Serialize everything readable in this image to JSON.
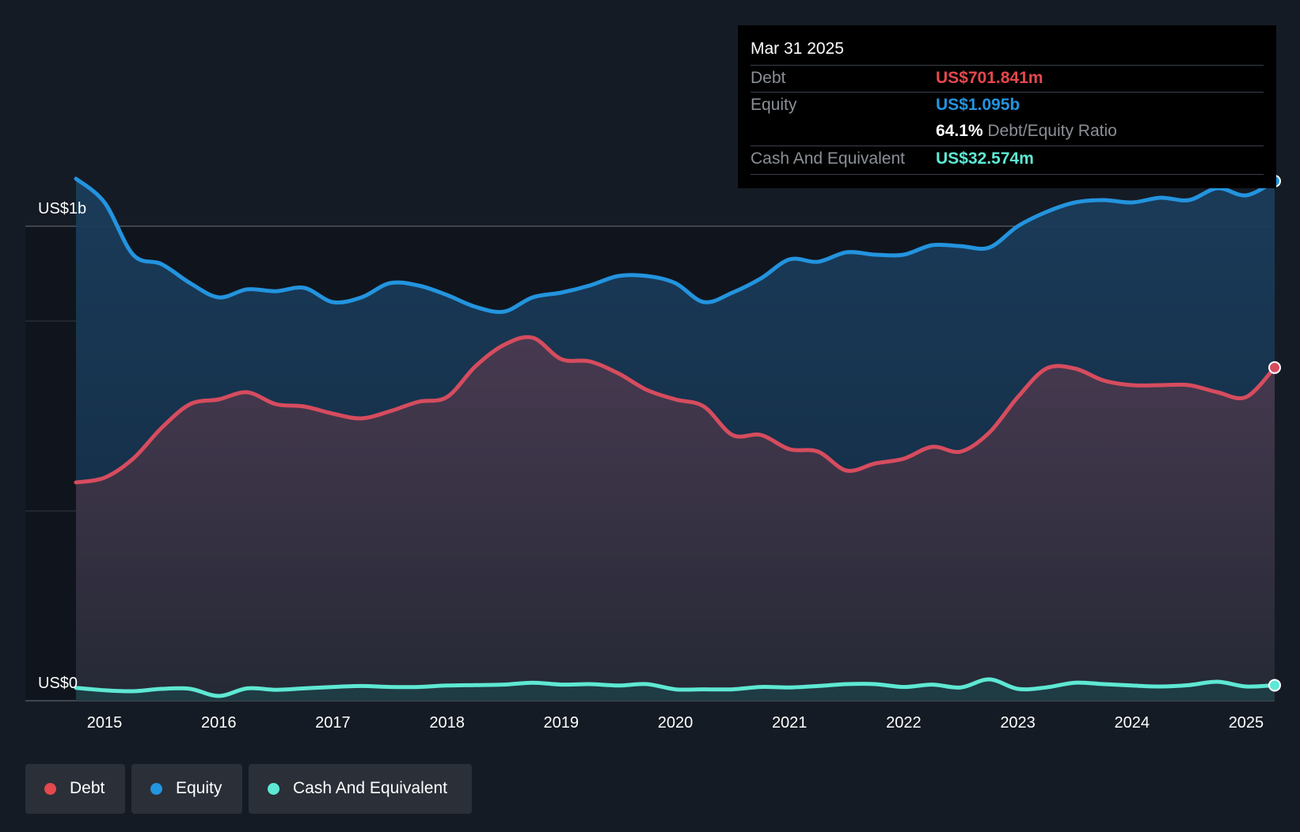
{
  "tooltip": {
    "date": "Mar 31 2025",
    "debt_label": "Debt",
    "debt_value": "US$701.841m",
    "equity_label": "Equity",
    "equity_value": "US$1.095b",
    "ratio_value": "64.1%",
    "ratio_label": "Debt/Equity Ratio",
    "cash_label": "Cash And Equivalent",
    "cash_value": "US$32.574m"
  },
  "legend": [
    {
      "label": "Debt",
      "color": "#e5484d"
    },
    {
      "label": "Equity",
      "color": "#2394df"
    },
    {
      "label": "Cash And Equivalent",
      "color": "#5ee8d3"
    }
  ],
  "colors": {
    "background": "#151b24",
    "debt": "#d64c5e",
    "equity": "#2394df",
    "cash": "#5ee8d3"
  },
  "chart_data": {
    "type": "area",
    "title": "",
    "xlabel": "",
    "ylabel": "",
    "y_top_label": "US$1b",
    "y_bottom_label": "US$0",
    "ylim": [
      0,
      1.2
    ],
    "xlim": [
      2014.75,
      2025.25
    ],
    "x_ticks": [
      2015,
      2016,
      2017,
      2018,
      2019,
      2020,
      2021,
      2022,
      2023,
      2024,
      2025
    ],
    "x_tick_labels": [
      "2015",
      "2016",
      "2017",
      "2018",
      "2019",
      "2020",
      "2021",
      "2022",
      "2023",
      "2024",
      "2025"
    ],
    "series": [
      {
        "name": "Equity",
        "x": [
          2014.75,
          2015.0,
          2015.25,
          2015.5,
          2015.75,
          2016.0,
          2016.25,
          2016.5,
          2016.75,
          2017.0,
          2017.25,
          2017.5,
          2017.75,
          2018.0,
          2018.25,
          2018.5,
          2018.75,
          2019.0,
          2019.25,
          2019.5,
          2019.75,
          2020.0,
          2020.25,
          2020.5,
          2020.75,
          2021.0,
          2021.25,
          2021.5,
          2021.75,
          2022.0,
          2022.25,
          2022.5,
          2022.75,
          2023.0,
          2023.25,
          2023.5,
          2023.75,
          2024.0,
          2024.25,
          2024.5,
          2024.75,
          2025.0,
          2025.25
        ],
        "values": [
          1.1,
          1.05,
          0.94,
          0.92,
          0.88,
          0.85,
          0.867,
          0.863,
          0.87,
          0.84,
          0.85,
          0.88,
          0.875,
          0.855,
          0.83,
          0.82,
          0.85,
          0.86,
          0.875,
          0.895,
          0.895,
          0.88,
          0.84,
          0.86,
          0.89,
          0.93,
          0.925,
          0.945,
          0.94,
          0.94,
          0.96,
          0.958,
          0.955,
          1.0,
          1.03,
          1.05,
          1.055,
          1.05,
          1.06,
          1.055,
          1.08,
          1.065,
          1.095
        ]
      },
      {
        "name": "Debt",
        "x": [
          2014.75,
          2015.0,
          2015.25,
          2015.5,
          2015.75,
          2016.0,
          2016.25,
          2016.5,
          2016.75,
          2017.0,
          2017.25,
          2017.5,
          2017.75,
          2018.0,
          2018.25,
          2018.5,
          2018.75,
          2019.0,
          2019.25,
          2019.5,
          2019.75,
          2020.0,
          2020.25,
          2020.5,
          2020.75,
          2021.0,
          2021.25,
          2021.5,
          2021.75,
          2022.0,
          2022.25,
          2022.5,
          2022.75,
          2023.0,
          2023.25,
          2023.5,
          2023.75,
          2024.0,
          2024.25,
          2024.5,
          2024.75,
          2025.0,
          2025.25
        ],
        "values": [
          0.46,
          0.47,
          0.51,
          0.575,
          0.625,
          0.635,
          0.65,
          0.625,
          0.62,
          0.605,
          0.595,
          0.61,
          0.63,
          0.64,
          0.705,
          0.75,
          0.765,
          0.72,
          0.715,
          0.69,
          0.655,
          0.635,
          0.62,
          0.56,
          0.56,
          0.53,
          0.525,
          0.485,
          0.5,
          0.51,
          0.535,
          0.525,
          0.565,
          0.64,
          0.7,
          0.7,
          0.675,
          0.665,
          0.665,
          0.665,
          0.65,
          0.64,
          0.702
        ]
      },
      {
        "name": "Cash And Equivalent",
        "x": [
          2014.75,
          2015.0,
          2015.25,
          2015.5,
          2015.75,
          2016.0,
          2016.25,
          2016.5,
          2016.75,
          2017.0,
          2017.25,
          2017.5,
          2017.75,
          2018.0,
          2018.25,
          2018.5,
          2018.75,
          2019.0,
          2019.25,
          2019.5,
          2019.75,
          2020.0,
          2020.25,
          2020.5,
          2020.75,
          2021.0,
          2021.25,
          2021.5,
          2021.75,
          2022.0,
          2022.25,
          2022.5,
          2022.75,
          2023.0,
          2023.25,
          2023.5,
          2023.75,
          2024.0,
          2024.25,
          2024.5,
          2024.75,
          2025.0,
          2025.25
        ],
        "values": [
          0.027,
          0.022,
          0.02,
          0.025,
          0.025,
          0.01,
          0.026,
          0.023,
          0.026,
          0.029,
          0.031,
          0.029,
          0.029,
          0.032,
          0.033,
          0.034,
          0.038,
          0.034,
          0.035,
          0.032,
          0.035,
          0.024,
          0.024,
          0.024,
          0.029,
          0.028,
          0.031,
          0.035,
          0.035,
          0.029,
          0.034,
          0.028,
          0.045,
          0.025,
          0.028,
          0.038,
          0.035,
          0.032,
          0.03,
          0.033,
          0.04,
          0.03,
          0.0326
        ]
      }
    ]
  }
}
